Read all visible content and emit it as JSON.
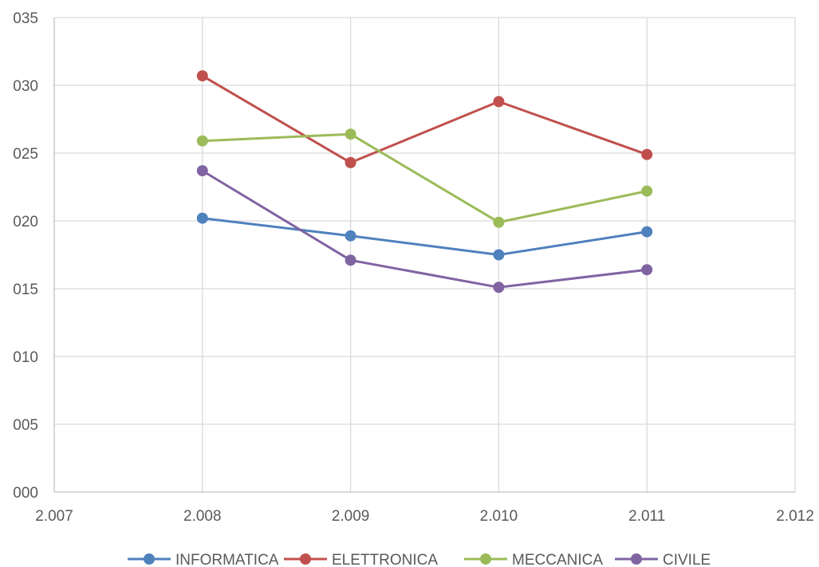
{
  "chart_data": {
    "type": "scatter",
    "mode": "lines+markers",
    "x_ticks": [
      "2.007",
      "2.008",
      "2.009",
      "2.010",
      "2.011",
      "2.012"
    ],
    "y_ticks": [
      "000",
      "005",
      "010",
      "015",
      "020",
      "025",
      "030",
      "035"
    ],
    "xlim": [
      2007,
      2012
    ],
    "ylim": [
      0,
      35
    ],
    "grid": true,
    "legend": "bottom",
    "series": [
      {
        "name": "INFORMATICA",
        "color": "#4f81bd",
        "x": [
          2008,
          2009,
          2010,
          2011
        ],
        "y": [
          20.2,
          18.9,
          17.5,
          19.2
        ]
      },
      {
        "name": "ELETTRONICA",
        "color": "#c0504d",
        "x": [
          2008,
          2009,
          2010,
          2011
        ],
        "y": [
          30.7,
          24.3,
          28.8,
          24.9
        ]
      },
      {
        "name": "MECCANICA",
        "color": "#9bbb59",
        "x": [
          2008,
          2009,
          2010,
          2011
        ],
        "y": [
          25.9,
          26.4,
          19.9,
          22.2
        ]
      },
      {
        "name": "CIVILE",
        "color": "#8064a2",
        "x": [
          2008,
          2009,
          2010,
          2011
        ],
        "y": [
          23.7,
          17.1,
          15.1,
          16.4
        ]
      }
    ]
  }
}
